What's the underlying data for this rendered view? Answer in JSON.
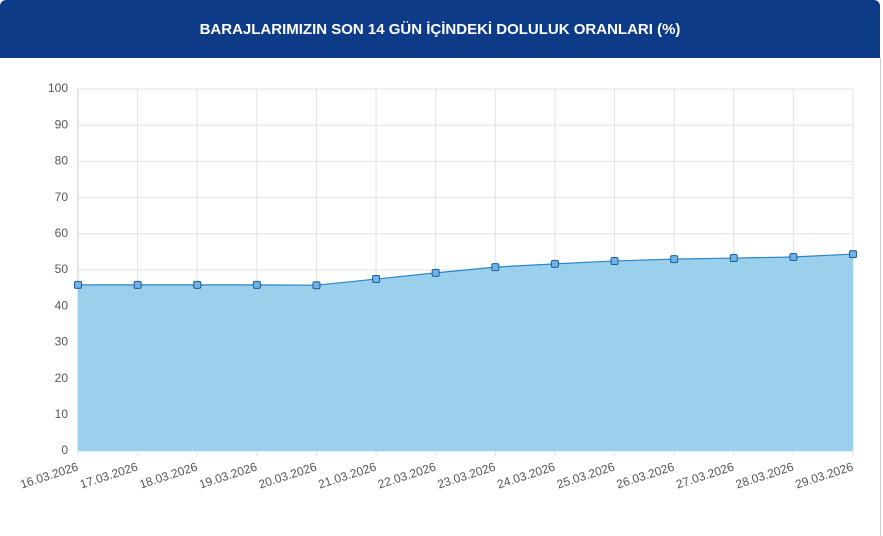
{
  "chart_data": {
    "type": "area",
    "title": "BARAJLARIMIZIN SON 14 GÜN İÇİNDEKİ DOLULUK ORANLARI (%)",
    "categories": [
      "16.03.2026",
      "17.03.2026",
      "18.03.2026",
      "19.03.2026",
      "20.03.2026",
      "21.03.2026",
      "22.03.2026",
      "23.03.2026",
      "24.03.2026",
      "25.03.2026",
      "26.03.2026",
      "27.03.2026",
      "28.03.2026",
      "29.03.2026"
    ],
    "values": [
      45.9,
      45.9,
      45.9,
      45.9,
      45.8,
      47.5,
      49.2,
      50.8,
      51.7,
      52.5,
      53.0,
      53.3,
      53.6,
      54.4
    ],
    "color": "#2a86c6",
    "fill_color": "#9ad0ec",
    "ylim": [
      0,
      100
    ],
    "yticks": [
      0,
      10,
      20,
      30,
      40,
      50,
      60,
      70,
      80,
      90,
      100
    ],
    "grid": true
  }
}
